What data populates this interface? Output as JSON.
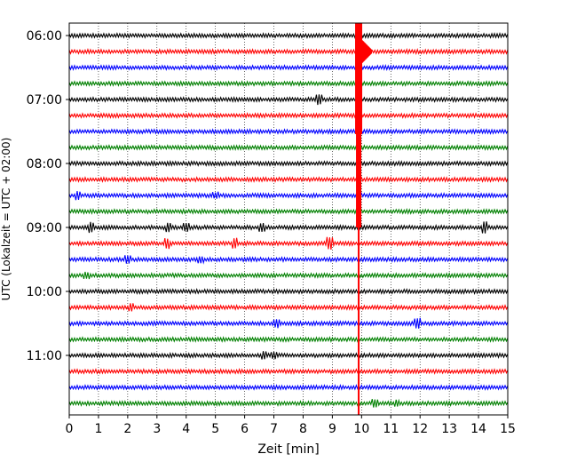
{
  "chart_data": {
    "type": "line",
    "title": "",
    "xlabel": "Zeit  [min]",
    "ylabel": "UTC (Lokalzeit = UTC + 02:00)",
    "xlim": [
      0,
      15
    ],
    "x_ticks": [
      "0",
      "1",
      "2",
      "3",
      "4",
      "5",
      "6",
      "7",
      "8",
      "9",
      "10",
      "11",
      "12",
      "13",
      "14",
      "15"
    ],
    "y_ticks": [
      "06:00",
      "07:00",
      "08:00",
      "09:00",
      "10:00",
      "11:00"
    ],
    "grid": "vertical dotted at each minute",
    "row_colors": [
      "#000000",
      "#ff0000",
      "#0000ff",
      "#008000"
    ],
    "traces": [
      "06:00",
      "06:15",
      "06:30",
      "06:45",
      "07:00",
      "07:15",
      "07:30",
      "07:45",
      "08:00",
      "08:15",
      "08:30",
      "08:45",
      "09:00",
      "09:15",
      "09:30",
      "09:45",
      "10:00",
      "10:15",
      "10:30",
      "10:45",
      "11:00",
      "11:15",
      "11:30",
      "11:45"
    ],
    "event": {
      "minute": 9.9,
      "description": "strong seismic signal, red trace from 06:15 row through 11:45 row, peak near 06:00–07:15"
    }
  }
}
